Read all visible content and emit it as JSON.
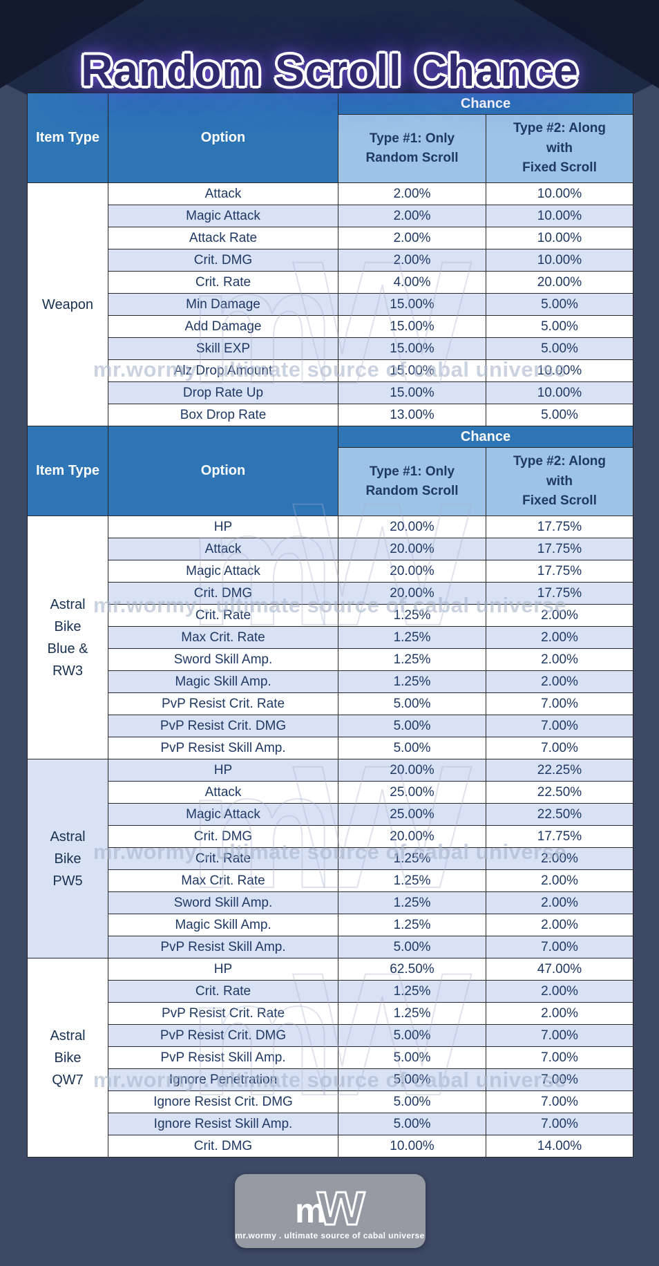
{
  "title": "Random Scroll Chance",
  "colors": {
    "background": "#3d4965",
    "banner": "#1e2945",
    "header_blue": "#2e75b6",
    "subheader_blue": "#9dc3e6",
    "row_stripe": "#d9e2f5",
    "data_text": "#1f3864",
    "title_glow": "#7a52ff"
  },
  "watermark": {
    "logo_m": "m",
    "logo_w": "w",
    "tagline": "mr.wormy . ultimate source of cabal universe"
  },
  "footer": {
    "logo_m": "m",
    "logo_w": "w",
    "tagline": "mr.wormy . ultimate source of cabal universe"
  },
  "chart_data": [
    {
      "type": "table",
      "title": "Random Scroll Chance",
      "columns": {
        "item_type": "Item Type",
        "option": "Option",
        "chance": "Chance",
        "type1": "Type #1: Only\nRandom Scroll",
        "type2": "Type #2: Along\nwith\nFixed Scroll"
      },
      "sections": [
        {
          "item": "Weapon",
          "rows": [
            [
              "Attack",
              "2.00%",
              "10.00%"
            ],
            [
              "Magic Attack",
              "2.00%",
              "10.00%"
            ],
            [
              "Attack Rate",
              "2.00%",
              "10.00%"
            ],
            [
              "Crit. DMG",
              "2.00%",
              "10.00%"
            ],
            [
              "Crit. Rate",
              "4.00%",
              "20.00%"
            ],
            [
              "Min Damage",
              "15.00%",
              "5.00%"
            ],
            [
              "Add Damage",
              "15.00%",
              "5.00%"
            ],
            [
              "Skill EXP",
              "15.00%",
              "5.00%"
            ],
            [
              "Alz Drop Amount",
              "15.00%",
              "10.00%"
            ],
            [
              "Drop Rate Up",
              "15.00%",
              "10.00%"
            ],
            [
              "Box Drop Rate",
              "13.00%",
              "5.00%"
            ]
          ]
        }
      ]
    },
    {
      "type": "table",
      "columns": {
        "item_type": "Item Type",
        "option": "Option",
        "chance": "Chance",
        "type1": "Type #1: Only\nRandom Scroll",
        "type2": "Type #2: Along\nwith\nFixed Scroll"
      },
      "sections": [
        {
          "item": "Astral\nBike\nBlue &\nRW3",
          "rows": [
            [
              "HP",
              "20.00%",
              "17.75%"
            ],
            [
              "Attack",
              "20.00%",
              "17.75%"
            ],
            [
              "Magic Attack",
              "20.00%",
              "17.75%"
            ],
            [
              "Crit. DMG",
              "20.00%",
              "17.75%"
            ],
            [
              "Crit. Rate",
              "1.25%",
              "2.00%"
            ],
            [
              "Max Crit. Rate",
              "1.25%",
              "2.00%"
            ],
            [
              "Sword Skill Amp.",
              "1.25%",
              "2.00%"
            ],
            [
              "Magic Skill Amp.",
              "1.25%",
              "2.00%"
            ],
            [
              "PvP Resist Crit. Rate",
              "5.00%",
              "7.00%"
            ],
            [
              "PvP Resist Crit. DMG",
              "5.00%",
              "7.00%"
            ],
            [
              "PvP Resist Skill Amp.",
              "5.00%",
              "7.00%"
            ]
          ]
        },
        {
          "item": "Astral\nBike\nPW5",
          "rows": [
            [
              "HP",
              "20.00%",
              "22.25%"
            ],
            [
              "Attack",
              "25.00%",
              "22.50%"
            ],
            [
              "Magic Attack",
              "25.00%",
              "22.50%"
            ],
            [
              "Crit. DMG",
              "20.00%",
              "17.75%"
            ],
            [
              "Crit. Rate",
              "1.25%",
              "2.00%"
            ],
            [
              "Max Crit. Rate",
              "1.25%",
              "2.00%"
            ],
            [
              "Sword Skill Amp.",
              "1.25%",
              "2.00%"
            ],
            [
              "Magic Skill Amp.",
              "1.25%",
              "2.00%"
            ],
            [
              "PvP Resist Skill Amp.",
              "5.00%",
              "7.00%"
            ]
          ]
        },
        {
          "item": "Astral\nBike\nQW7",
          "rows": [
            [
              "HP",
              "62.50%",
              "47.00%"
            ],
            [
              "Crit. Rate",
              "1.25%",
              "2.00%"
            ],
            [
              "PvP Resist Crit. Rate",
              "1.25%",
              "2.00%"
            ],
            [
              "PvP Resist Crit. DMG",
              "5.00%",
              "7.00%"
            ],
            [
              "PvP Resist Skill Amp.",
              "5.00%",
              "7.00%"
            ],
            [
              "Ignore Penetration",
              "5.00%",
              "7.00%"
            ],
            [
              "Ignore Resist Crit. DMG",
              "5.00%",
              "7.00%"
            ],
            [
              "Ignore Resist Skill Amp.",
              "5.00%",
              "7.00%"
            ],
            [
              "Crit. DMG",
              "10.00%",
              "14.00%"
            ]
          ]
        }
      ]
    }
  ]
}
